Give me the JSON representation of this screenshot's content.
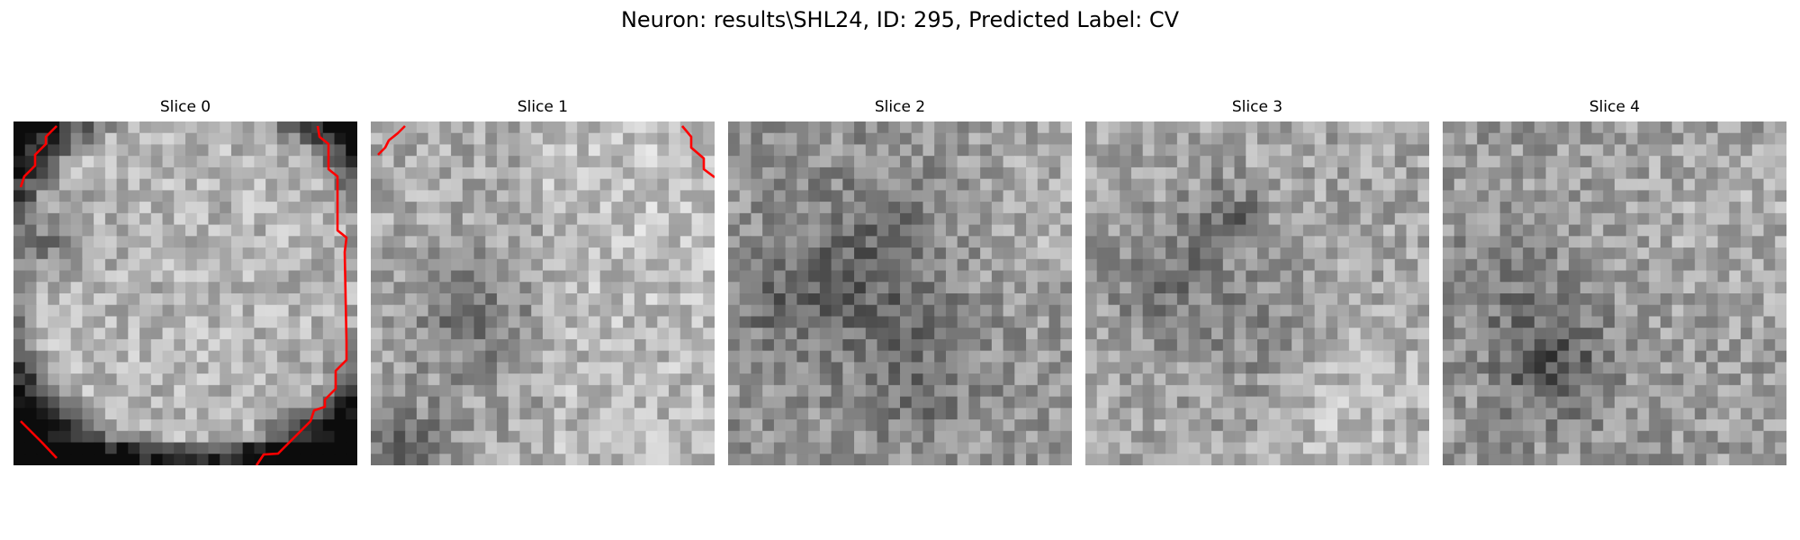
{
  "figure": {
    "title": "Neuron: results\\SHL24, ID: 295, Predicted Label: CV"
  },
  "slices": [
    {
      "title": "Slice 0"
    },
    {
      "title": "Slice 1"
    },
    {
      "title": "Slice 2"
    },
    {
      "title": "Slice 3"
    },
    {
      "title": "Slice 4"
    }
  ],
  "colors": {
    "background": "#ffffff",
    "contour": "#ff0000",
    "pixel_colormap": "grayscale"
  }
}
